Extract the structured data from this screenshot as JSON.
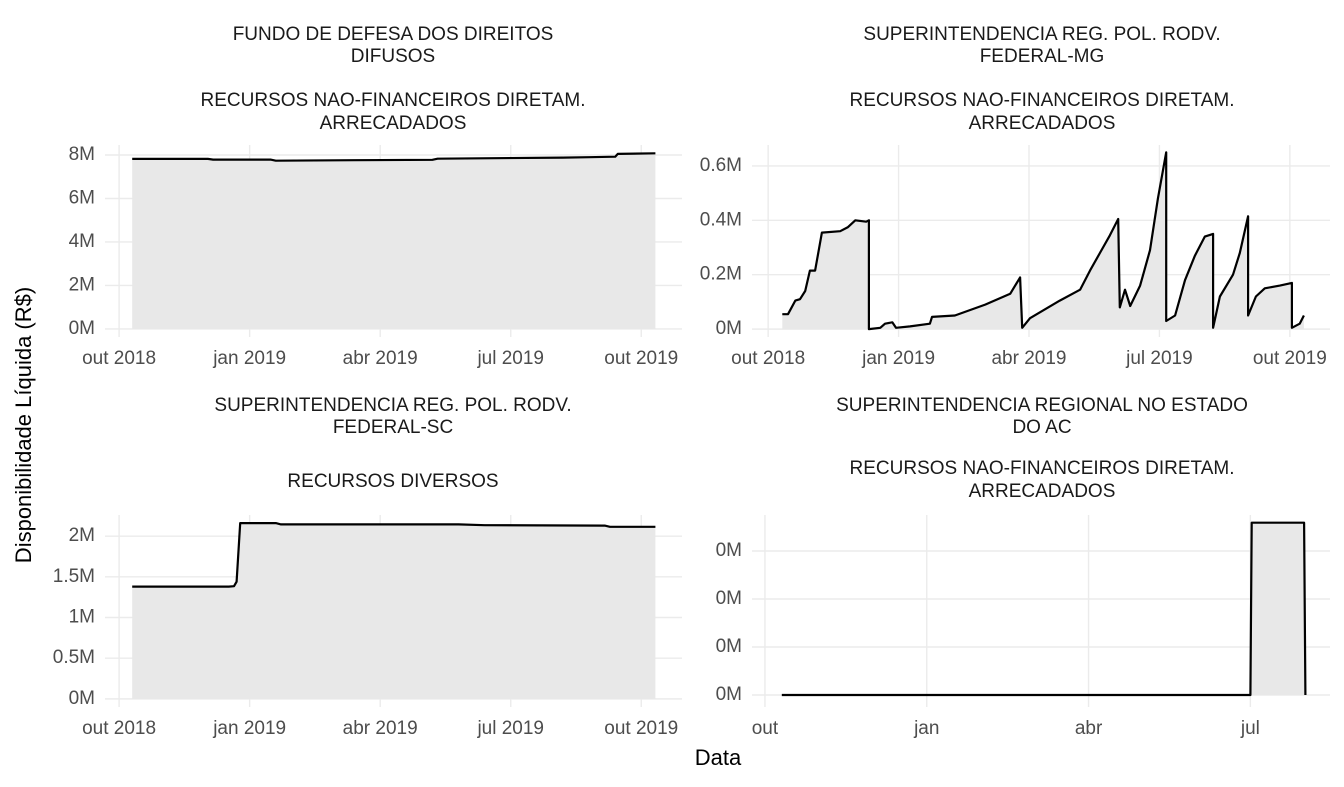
{
  "shared": {
    "xlabel": "Data",
    "ylabel": "Disponibilidade Líquida (R$)"
  },
  "chart_data": [
    {
      "type": "line",
      "title": [
        "FUNDO DE DEFESA DOS DIREITOS",
        "DIFUSOS"
      ],
      "subtitle": [
        "RECURSOS NAO-FINANCEIROS DIRETAM.",
        "ARRECADADOS"
      ],
      "x": [
        2018.775,
        2018.92,
        2018.93,
        2019.04,
        2019.05,
        2019.2,
        2019.35,
        2019.36,
        2019.6,
        2019.65,
        2019.7,
        2019.705,
        2019.777
      ],
      "values": [
        7820000,
        7820000,
        7790000,
        7790000,
        7740000,
        7760000,
        7780000,
        7830000,
        7880000,
        7900000,
        7920000,
        8050000,
        8080000
      ],
      "color": "#000000",
      "area_color": "#e8e8e8",
      "xlim": [
        2018.723,
        2019.828
      ],
      "xticks": [
        {
          "value": 2018.75,
          "label": "out 2018"
        },
        {
          "value": 2019.0,
          "label": "jan 2019"
        },
        {
          "value": 2019.25,
          "label": "abr 2019"
        },
        {
          "value": 2019.5,
          "label": "jul 2019"
        },
        {
          "value": 2019.75,
          "label": "out 2019"
        }
      ],
      "ylim": [
        -370000,
        8460000
      ],
      "yticks": [
        {
          "value": 0,
          "label": "0M"
        },
        {
          "value": 2000000,
          "label": "2M"
        },
        {
          "value": 4000000,
          "label": "4M"
        },
        {
          "value": 6000000,
          "label": "6M"
        },
        {
          "value": 8000000,
          "label": "8M"
        }
      ],
      "grid": true
    },
    {
      "type": "line",
      "title": [
        "SUPERINTENDENCIA REG. POL. RODV.",
        "FEDERAL-MG"
      ],
      "subtitle": [
        "RECURSOS NAO-FINANCEIROS DIRETAM.",
        "ARRECADADOS"
      ],
      "x": [
        2018.777,
        2018.788,
        2018.802,
        2018.811,
        2018.821,
        2018.83,
        2018.84,
        2018.853,
        2018.888,
        2018.903,
        2018.917,
        2018.938,
        2018.943,
        2018.943,
        2018.965,
        2018.974,
        2018.988,
        2018.995,
        2019.022,
        2019.06,
        2019.064,
        2019.108,
        2019.166,
        2019.214,
        2019.233,
        2019.237,
        2019.252,
        2019.309,
        2019.348,
        2019.367,
        2019.386,
        2019.405,
        2019.421,
        2019.424,
        2019.434,
        2019.444,
        2019.463,
        2019.482,
        2019.497,
        2019.513,
        2019.513,
        2019.53,
        2019.549,
        2019.568,
        2019.587,
        2019.603,
        2019.603,
        2019.616,
        2019.641,
        2019.654,
        2019.67,
        2019.67,
        2019.685,
        2019.702,
        2019.731,
        2019.754,
        2019.754,
        2019.769,
        2019.777
      ],
      "values": [
        55000,
        55000,
        105000,
        110000,
        140000,
        215000,
        215000,
        355000,
        360000,
        375000,
        400000,
        395000,
        400000,
        0,
        5000,
        20000,
        25000,
        5000,
        10000,
        20000,
        45000,
        50000,
        90000,
        130000,
        190000,
        5000,
        40000,
        105000,
        145000,
        215000,
        280000,
        345000,
        405000,
        80000,
        145000,
        85000,
        160000,
        290000,
        480000,
        650000,
        30000,
        50000,
        180000,
        270000,
        340000,
        350000,
        5000,
        120000,
        200000,
        280000,
        415000,
        50000,
        120000,
        150000,
        160000,
        170000,
        5000,
        20000,
        50000
      ],
      "color": "#000000",
      "area_color": "#e8e8e8",
      "xlim": [
        2018.719,
        2019.827
      ],
      "xticks": [
        {
          "value": 2018.75,
          "label": "out 2018"
        },
        {
          "value": 2019.0,
          "label": "jan 2019"
        },
        {
          "value": 2019.25,
          "label": "abr 2019"
        },
        {
          "value": 2019.5,
          "label": "jul 2019"
        },
        {
          "value": 2019.75,
          "label": "out 2019"
        }
      ],
      "ylim": [
        -29000,
        677000
      ],
      "yticks": [
        {
          "value": 0,
          "label": "0M"
        },
        {
          "value": 200000,
          "label": "0.2M"
        },
        {
          "value": 400000,
          "label": "0.4M"
        },
        {
          "value": 600000,
          "label": "0.6M"
        }
      ],
      "grid": true
    },
    {
      "type": "line",
      "title": [
        "SUPERINTENDENCIA REG. POL. RODV.",
        "FEDERAL-SC"
      ],
      "subtitle": [
        "RECURSOS DIVERSOS"
      ],
      "x": [
        2018.775,
        2018.96,
        2018.97,
        2018.975,
        2018.982,
        2019.05,
        2019.06,
        2019.4,
        2019.45,
        2019.68,
        2019.69,
        2019.777
      ],
      "values": [
        1380000,
        1380000,
        1385000,
        1440000,
        2160000,
        2160000,
        2145000,
        2145000,
        2135000,
        2130000,
        2115000,
        2115000
      ],
      "color": "#000000",
      "area_color": "#e8e8e8",
      "xlim": [
        2018.723,
        2019.828
      ],
      "xticks": [
        {
          "value": 2018.75,
          "label": "out 2018"
        },
        {
          "value": 2019.0,
          "label": "jan 2019"
        },
        {
          "value": 2019.25,
          "label": "abr 2019"
        },
        {
          "value": 2019.5,
          "label": "jul 2019"
        },
        {
          "value": 2019.75,
          "label": "out 2019"
        }
      ],
      "ylim": [
        -100000,
        2260000
      ],
      "yticks": [
        {
          "value": 0,
          "label": "0M"
        },
        {
          "value": 500000,
          "label": "0.5M"
        },
        {
          "value": 1000000,
          "label": "1M"
        },
        {
          "value": 1500000,
          "label": "1.5M"
        },
        {
          "value": 2000000,
          "label": "2M"
        }
      ],
      "grid": true
    },
    {
      "type": "line",
      "title": [
        "SUPERINTENDENCIA REGIONAL NO ESTADO",
        "DO AC"
      ],
      "subtitle": [
        "RECURSOS NAO-FINANCEIROS DIRETAM.",
        "ARRECADADOS"
      ],
      "x": [
        2018.776,
        2019.5,
        2019.502,
        2019.583,
        2019.585
      ],
      "values": [
        0,
        0,
        3590,
        3590,
        0
      ],
      "color": "#000000",
      "area_color": "#e8e8e8",
      "xlim": [
        2018.73,
        2019.623
      ],
      "xticks": [
        {
          "value": 2018.75,
          "label": "out"
        },
        {
          "value": 2019.0,
          "label": "jan"
        },
        {
          "value": 2019.25,
          "label": "abr"
        },
        {
          "value": 2019.5,
          "label": "jul"
        }
      ],
      "ylim": [
        -250,
        3750
      ],
      "yticks": [
        {
          "value": 0,
          "label": "0M"
        },
        {
          "value": 1000,
          "label": "0M"
        },
        {
          "value": 2000,
          "label": "0M"
        },
        {
          "value": 3000,
          "label": "0M"
        }
      ],
      "grid": true
    }
  ]
}
